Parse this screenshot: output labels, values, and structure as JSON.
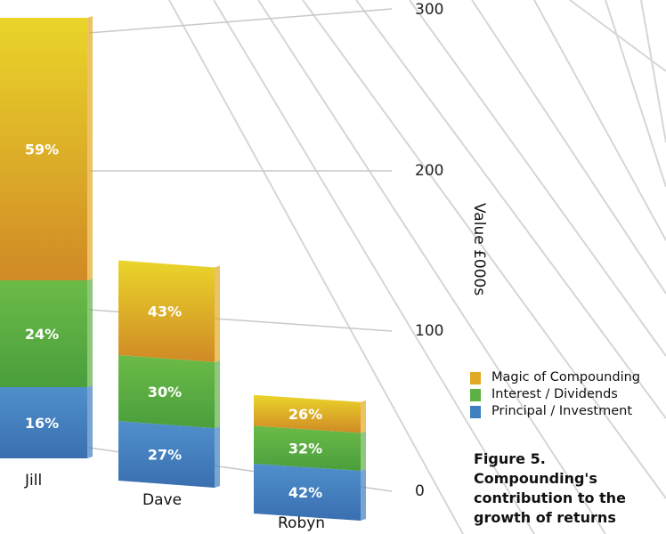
{
  "chart_data": {
    "type": "bar",
    "stacked": true,
    "three_d": true,
    "categories": [
      "Jill",
      "Dave",
      "Robyn"
    ],
    "totals_estimated": [
      300,
      150,
      65
    ],
    "series": [
      {
        "name": "Principal / Investment",
        "percent": [
          16,
          27,
          42
        ],
        "labels": [
          "16%",
          "27%",
          "42%"
        ],
        "color": "#3f7fc0"
      },
      {
        "name": "Interest / Dividends",
        "percent": [
          24,
          30,
          32
        ],
        "labels": [
          "24%",
          "30%",
          "32%"
        ],
        "color": "#5db144"
      },
      {
        "name": "Magic of Compounding",
        "percent": [
          59,
          43,
          26
        ],
        "labels": [
          "59%",
          "43%",
          "26%"
        ],
        "color": "#e2aa24"
      }
    ],
    "ylabel": "Value £000s",
    "yticks": [
      "0",
      "100",
      "200",
      "300"
    ],
    "ylim": [
      0,
      300
    ],
    "grid": true,
    "legend_position": "right"
  },
  "legend": [
    {
      "label": "Magic of Compounding",
      "color": "#e2aa24"
    },
    {
      "label": "Interest / Dividends",
      "color": "#5db144"
    },
    {
      "label": "Principal / Investment",
      "color": "#3f7fc0"
    }
  ],
  "caption": {
    "line1": "Figure 5.",
    "line2": "Compounding's",
    "line3": "contribution to the",
    "line4": "growth of returns"
  }
}
